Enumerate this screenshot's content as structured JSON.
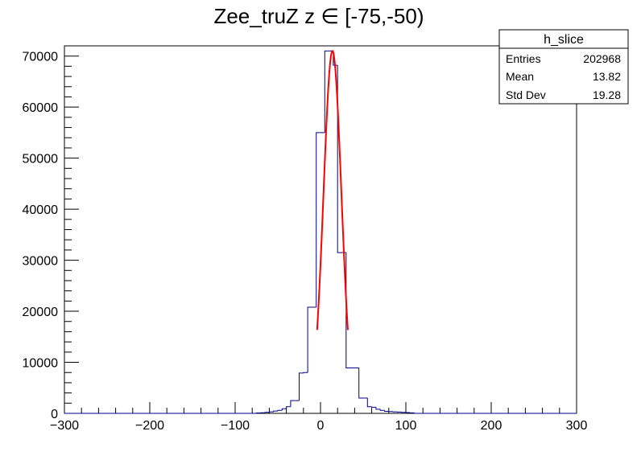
{
  "chart_data": {
    "type": "histogram",
    "title": "Zee_truZ z  ∈ [-75,-50)",
    "xlabel": "",
    "ylabel": "",
    "xlim": [
      -300,
      300
    ],
    "ylim": [
      0,
      72000
    ],
    "xticks": [
      -300,
      -200,
      -100,
      0,
      100,
      200,
      300
    ],
    "xtick_labels": [
      "−300",
      "−200",
      "−100",
      "0",
      "100",
      "200",
      "300"
    ],
    "yticks": [
      0,
      10000,
      20000,
      30000,
      40000,
      50000,
      60000,
      70000
    ],
    "ytick_labels": [
      "0",
      "10000",
      "20000",
      "30000",
      "40000",
      "50000",
      "60000",
      "70000"
    ],
    "grid": false,
    "histogram": {
      "name": "h_slice",
      "color": "#00008b",
      "bin_width": 5,
      "bins": [
        {
          "x0": -75,
          "value": 80
        },
        {
          "x0": -70,
          "value": 120
        },
        {
          "x0": -65,
          "value": 200
        },
        {
          "x0": -60,
          "value": 300
        },
        {
          "x0": -55,
          "value": 450
        },
        {
          "x0": -50,
          "value": 600
        },
        {
          "x0": -45,
          "value": 900
        },
        {
          "x0": -40,
          "value": 1300
        },
        {
          "x0": -35,
          "value": 2500
        },
        {
          "x0": -30,
          "value": 2500
        },
        {
          "x0": -25,
          "value": 7900
        },
        {
          "x0": -20,
          "value": 8000
        },
        {
          "x0": -15,
          "value": 20800
        },
        {
          "x0": -10,
          "value": 20800
        },
        {
          "x0": -5,
          "value": 55000
        },
        {
          "x0": 0,
          "value": 55000
        },
        {
          "x0": 5,
          "value": 71000
        },
        {
          "x0": 10,
          "value": 71000
        },
        {
          "x0": 15,
          "value": 68200
        },
        {
          "x0": 20,
          "value": 31500
        },
        {
          "x0": 25,
          "value": 31500
        },
        {
          "x0": 30,
          "value": 8900
        },
        {
          "x0": 35,
          "value": 8900
        },
        {
          "x0": 40,
          "value": 8900
        },
        {
          "x0": 45,
          "value": 3000
        },
        {
          "x0": 50,
          "value": 3000
        },
        {
          "x0": 55,
          "value": 1300
        },
        {
          "x0": 60,
          "value": 1200
        },
        {
          "x0": 65,
          "value": 800
        },
        {
          "x0": 70,
          "value": 600
        },
        {
          "x0": 75,
          "value": 400
        },
        {
          "x0": 80,
          "value": 350
        },
        {
          "x0": 85,
          "value": 300
        },
        {
          "x0": 90,
          "value": 250
        },
        {
          "x0": 95,
          "value": 200
        },
        {
          "x0": 100,
          "value": 150
        },
        {
          "x0": 105,
          "value": 100
        }
      ]
    },
    "fit": {
      "type": "gaussian",
      "color": "#ff0000",
      "constant": 71000,
      "mean": 14,
      "sigma": 10.5,
      "range": [
        -4,
        32
      ]
    },
    "stats_box": {
      "title": "h_slice",
      "rows": [
        {
          "label": "Entries",
          "value": "202968"
        },
        {
          "label": "Mean",
          "value": "13.82"
        },
        {
          "label": "Std Dev",
          "value": "19.28"
        }
      ]
    }
  }
}
